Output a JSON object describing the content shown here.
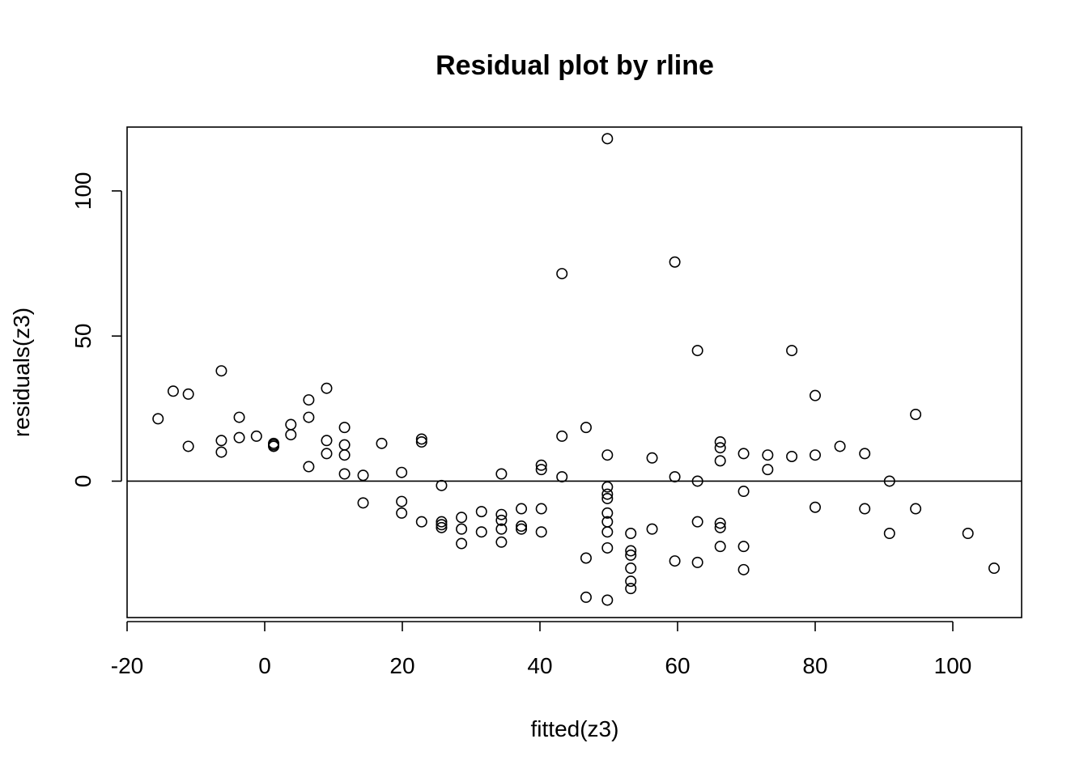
{
  "chart_data": {
    "type": "scatter",
    "title": "Residual plot by rline",
    "xlabel": "fitted(z3)",
    "ylabel": "residuals(z3)",
    "xlim": [
      -20,
      110
    ],
    "ylim": [
      -47,
      122
    ],
    "xticks": [
      -20,
      0,
      20,
      40,
      60,
      80,
      100
    ],
    "xtick_labels": [
      "-20",
      "0",
      "20",
      "40",
      "60",
      "80",
      "100"
    ],
    "yticks": [
      0,
      50,
      100
    ],
    "ytick_labels": [
      "0",
      "50",
      "100"
    ],
    "reference_line": {
      "orientation": "horizontal",
      "y": 0
    },
    "grid": false,
    "legend": "none",
    "marker": "open-circle",
    "colors": {
      "points": "#000000",
      "background": "#ffffff"
    },
    "points": [
      [
        -15.5,
        21.5
      ],
      [
        -13.3,
        31
      ],
      [
        -11.1,
        30
      ],
      [
        -11.1,
        12
      ],
      [
        -6.3,
        38
      ],
      [
        -6.3,
        14
      ],
      [
        -6.3,
        10
      ],
      [
        -3.7,
        22
      ],
      [
        -3.7,
        15
      ],
      [
        -1.2,
        15.5
      ],
      [
        1.3,
        13
      ],
      [
        1.3,
        12.5
      ],
      [
        1.3,
        12
      ],
      [
        3.8,
        19.5
      ],
      [
        3.8,
        16
      ],
      [
        6.4,
        28
      ],
      [
        6.4,
        22
      ],
      [
        6.4,
        5
      ],
      [
        9,
        32
      ],
      [
        9,
        14
      ],
      [
        9,
        9.5
      ],
      [
        11.6,
        18.5
      ],
      [
        11.6,
        12.5
      ],
      [
        11.6,
        9
      ],
      [
        11.6,
        2.5
      ],
      [
        14.3,
        2
      ],
      [
        14.3,
        -7.5
      ],
      [
        17,
        13
      ],
      [
        19.9,
        3
      ],
      [
        19.9,
        -7
      ],
      [
        19.9,
        -11
      ],
      [
        22.8,
        14.5
      ],
      [
        22.8,
        13.5
      ],
      [
        22.8,
        -14
      ],
      [
        25.7,
        -1.5
      ],
      [
        25.7,
        -14
      ],
      [
        25.7,
        -15
      ],
      [
        25.7,
        -16
      ],
      [
        28.6,
        -12.5
      ],
      [
        28.6,
        -16.5
      ],
      [
        28.6,
        -21.5
      ],
      [
        31.5,
        -10.5
      ],
      [
        31.5,
        -17.5
      ],
      [
        34.4,
        2.5
      ],
      [
        34.4,
        -11.5
      ],
      [
        34.4,
        -13.5
      ],
      [
        34.4,
        -16.5
      ],
      [
        34.4,
        -21
      ],
      [
        37.3,
        -9.5
      ],
      [
        37.3,
        -15.5
      ],
      [
        37.3,
        -16.5
      ],
      [
        40.2,
        5.5
      ],
      [
        40.2,
        4
      ],
      [
        40.2,
        -9.5
      ],
      [
        40.2,
        -17.5
      ],
      [
        43.2,
        71.5
      ],
      [
        43.2,
        15.5
      ],
      [
        43.2,
        1.5
      ],
      [
        46.7,
        18.5
      ],
      [
        46.7,
        -26.5
      ],
      [
        46.7,
        -40
      ],
      [
        49.8,
        118
      ],
      [
        49.8,
        9
      ],
      [
        49.8,
        -2
      ],
      [
        49.8,
        -4.5
      ],
      [
        49.8,
        -6
      ],
      [
        49.8,
        -11
      ],
      [
        49.8,
        -14
      ],
      [
        49.8,
        -17.5
      ],
      [
        49.8,
        -23
      ],
      [
        49.8,
        -41
      ],
      [
        53.2,
        -18
      ],
      [
        53.2,
        -24
      ],
      [
        53.2,
        -25.5
      ],
      [
        53.2,
        -30
      ],
      [
        53.2,
        -34.5
      ],
      [
        53.2,
        -37
      ],
      [
        56.3,
        8
      ],
      [
        56.3,
        -16.5
      ],
      [
        59.6,
        75.5
      ],
      [
        59.6,
        1.5
      ],
      [
        59.6,
        -27.5
      ],
      [
        62.9,
        45
      ],
      [
        62.9,
        0
      ],
      [
        62.9,
        -14
      ],
      [
        62.9,
        -28
      ],
      [
        66.2,
        13.5
      ],
      [
        66.2,
        11.5
      ],
      [
        66.2,
        7
      ],
      [
        66.2,
        -14.5
      ],
      [
        66.2,
        -16
      ],
      [
        66.2,
        -22.5
      ],
      [
        69.6,
        9.5
      ],
      [
        69.6,
        -3.5
      ],
      [
        69.6,
        -22.5
      ],
      [
        69.6,
        -30.5
      ],
      [
        73.1,
        9
      ],
      [
        73.1,
        4
      ],
      [
        76.6,
        45
      ],
      [
        76.6,
        8.5
      ],
      [
        80,
        29.5
      ],
      [
        80,
        9
      ],
      [
        80,
        -9
      ],
      [
        83.6,
        12
      ],
      [
        87.2,
        9.5
      ],
      [
        87.2,
        -9.5
      ],
      [
        90.8,
        0
      ],
      [
        90.8,
        -18
      ],
      [
        94.6,
        23
      ],
      [
        94.6,
        -9.5
      ],
      [
        102.2,
        -18
      ],
      [
        106,
        -30
      ]
    ]
  }
}
